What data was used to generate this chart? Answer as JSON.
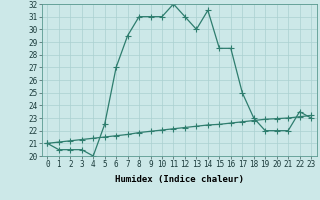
{
  "xlabel": "Humidex (Indice chaleur)",
  "x": [
    0,
    1,
    2,
    3,
    4,
    5,
    6,
    7,
    8,
    9,
    10,
    11,
    12,
    13,
    14,
    15,
    16,
    17,
    18,
    19,
    20,
    21,
    22,
    23
  ],
  "line1": [
    21.0,
    20.5,
    20.5,
    20.5,
    20.0,
    22.5,
    27.0,
    29.5,
    31.0,
    31.0,
    31.0,
    32.0,
    31.0,
    30.0,
    31.5,
    28.5,
    28.5,
    25.0,
    23.0,
    22.0,
    22.0,
    22.0,
    23.5,
    23.0
  ],
  "line2": [
    21.0,
    21.1,
    21.2,
    21.3,
    21.4,
    21.5,
    21.6,
    21.7,
    21.85,
    21.95,
    22.05,
    22.15,
    22.25,
    22.35,
    22.45,
    22.5,
    22.6,
    22.7,
    22.8,
    22.9,
    22.95,
    23.0,
    23.1,
    23.2
  ],
  "line_color": "#2e7d6e",
  "bg_color": "#cce8e8",
  "grid_color": "#aad0d0",
  "ylim": [
    20,
    32
  ],
  "yticks": [
    20,
    21,
    22,
    23,
    24,
    25,
    26,
    27,
    28,
    29,
    30,
    31,
    32
  ],
  "xticks": [
    0,
    1,
    2,
    3,
    4,
    5,
    6,
    7,
    8,
    9,
    10,
    11,
    12,
    13,
    14,
    15,
    16,
    17,
    18,
    19,
    20,
    21,
    22,
    23
  ],
  "markersize": 2.0,
  "linewidth": 0.9,
  "tick_fontsize": 5.5,
  "xlabel_fontsize": 6.5
}
